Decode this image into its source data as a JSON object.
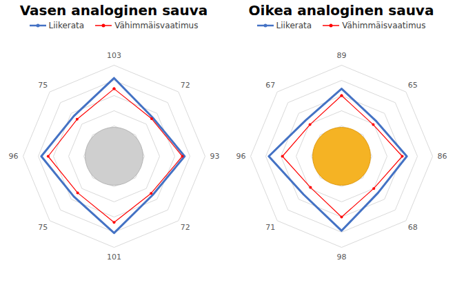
{
  "chart_data": [
    {
      "type": "radar",
      "title": "Vasen analoginen sauva",
      "series": [
        {
          "name": "Liikerata",
          "color": "#4472c4",
          "marker": "none",
          "values": [
            103,
            72,
            93,
            72,
            101,
            75,
            96,
            75
          ]
        },
        {
          "name": "Vähimmäisvaatimus",
          "color": "#ff0000",
          "marker": "circle",
          "values": [
            89,
            70,
            90,
            69,
            87,
            68,
            87,
            69
          ]
        }
      ],
      "ylim": [
        0,
        120
      ],
      "yticks": [
        0,
        20,
        40,
        60,
        80,
        100,
        120
      ],
      "grid": true,
      "tick_labels": false,
      "legend": "top",
      "data_labels": true
    },
    {
      "type": "radar",
      "title": "Oikea analoginen sauva",
      "series": [
        {
          "name": "Liikerata",
          "color": "#4472c4",
          "marker": "none",
          "values": [
            89,
            65,
            86,
            68,
            98,
            71,
            96,
            67
          ]
        },
        {
          "name": "Vähimmäisvaatimus",
          "color": "#ff0000",
          "marker": "circle",
          "values": [
            80,
            59,
            80,
            60,
            80,
            58,
            78,
            59
          ]
        }
      ],
      "ylim": [
        0,
        120
      ],
      "yticks": [
        0,
        20,
        40,
        60,
        80,
        100,
        120
      ],
      "grid": true,
      "tick_labels": false,
      "legend": "top",
      "data_labels": true
    }
  ]
}
